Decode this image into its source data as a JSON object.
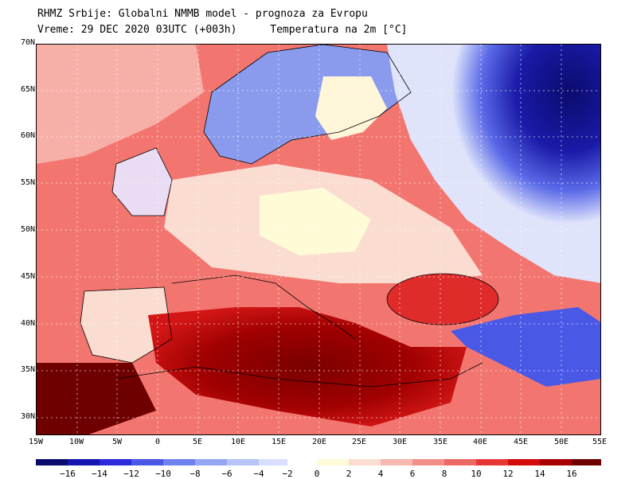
{
  "header": {
    "title": "RHMZ Srbije: Globalni NMMB model - prognoza za Evropu",
    "valid": "Vreme: 29 DEC 2020 03UTC (+003h)",
    "field": "Temperatura na 2m [°C]"
  },
  "map": {
    "lat_labels": [
      "70N",
      "65N",
      "60N",
      "55N",
      "50N",
      "45N",
      "40N",
      "35N",
      "30N"
    ],
    "lon_labels": [
      "15W",
      "10W",
      "5W",
      "0",
      "5E",
      "10E",
      "15E",
      "20E",
      "25E",
      "30E",
      "35E",
      "40E",
      "45E",
      "50E",
      "55E"
    ]
  },
  "colorbar": {
    "ticks": [
      "−16",
      "−14",
      "−12",
      "−10",
      "−8",
      "−6",
      "−4",
      "−2",
      "0",
      "2",
      "4",
      "6",
      "8",
      "10",
      "12",
      "14",
      "16"
    ],
    "colors": [
      "#0b0b6e",
      "#1515b0",
      "#2b2bdc",
      "#4a58e6",
      "#6f81ee",
      "#94a6f2",
      "#b7c4f7",
      "#d8defc",
      "#fffbd6",
      "#fbdcd0",
      "#f7b8b1",
      "#f28f87",
      "#ec6865",
      "#e73636",
      "#d40c0c",
      "#a80000",
      "#6e0000"
    ]
  },
  "regions": {
    "sea_warm": "#f2766f",
    "land_mild": "#fbdcd0",
    "east_cold": "#0b0b6e",
    "med_hot": "#8b0000"
  }
}
